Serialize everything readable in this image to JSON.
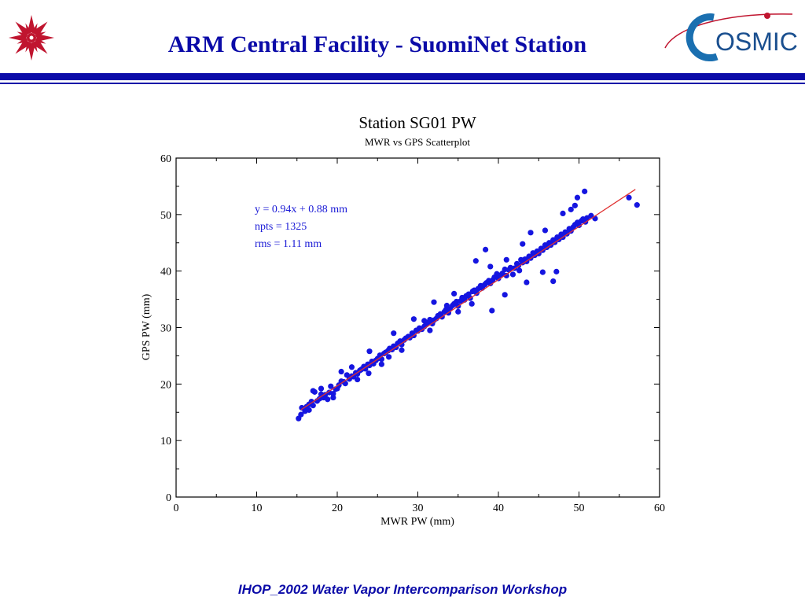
{
  "header": {
    "title": "ARM Central Facility - SuomiNet Station",
    "left_logo_icon": "star-emblem-icon",
    "right_logo_icon": "cosmic-logo-icon",
    "right_logo_text": "OSMIC",
    "accent_color": "#0b0ba8"
  },
  "footer": {
    "text": "IHOP_2002 Water Vapor Intercomparison Workshop"
  },
  "chart_data": {
    "type": "scatter",
    "title": "Station SG01 PW",
    "subtitle": "MWR vs GPS Scatterplot",
    "xlabel": "MWR PW (mm)",
    "ylabel": "GPS PW (mm)",
    "xlim": [
      0,
      60
    ],
    "ylim": [
      0,
      60
    ],
    "x_ticks": [
      "0",
      "10",
      "20",
      "30",
      "40",
      "50",
      "60"
    ],
    "y_ticks": [
      "0",
      "10",
      "20",
      "30",
      "40",
      "50",
      "60"
    ],
    "grid": false,
    "annotations": [
      "y = 0.94x + 0.88 mm",
      "npts = 1325",
      "rms = 1.11 mm"
    ],
    "point_color": "#1515e0",
    "fit_line_color": "#e03030",
    "fit": {
      "slope": 0.94,
      "intercept": 0.88,
      "x_range": [
        15.5,
        57
      ]
    },
    "series": [
      {
        "values": [
          [
            15.2,
            13.9
          ],
          [
            15.5,
            14.6
          ],
          [
            15.6,
            15.8
          ],
          [
            16.0,
            15.2
          ],
          [
            16.2,
            16.0
          ],
          [
            16.5,
            15.4
          ],
          [
            16.8,
            16.9
          ],
          [
            17.0,
            16.2
          ],
          [
            17.2,
            18.6
          ],
          [
            17.5,
            17.0
          ],
          [
            17.8,
            17.4
          ],
          [
            18.0,
            18.2
          ],
          [
            18.3,
            17.6
          ],
          [
            18.5,
            18.1
          ],
          [
            18.8,
            17.3
          ],
          [
            19.0,
            18.5
          ],
          [
            19.2,
            19.6
          ],
          [
            19.5,
            18.3
          ],
          [
            19.8,
            19.1
          ],
          [
            20.0,
            19.2
          ],
          [
            20.2,
            19.8
          ],
          [
            20.5,
            20.5
          ],
          [
            20.8,
            20.4
          ],
          [
            21.0,
            20.1
          ],
          [
            21.2,
            21.6
          ],
          [
            21.5,
            20.9
          ],
          [
            21.8,
            21.4
          ],
          [
            22.0,
            21.3
          ],
          [
            22.3,
            22.0
          ],
          [
            22.5,
            21.8
          ],
          [
            22.8,
            22.4
          ],
          [
            23.0,
            22.6
          ],
          [
            23.3,
            23.1
          ],
          [
            23.5,
            22.7
          ],
          [
            23.8,
            23.5
          ],
          [
            24.0,
            23.3
          ],
          [
            24.3,
            24.0
          ],
          [
            24.5,
            23.6
          ],
          [
            24.8,
            24.2
          ],
          [
            25.0,
            24.5
          ],
          [
            25.3,
            25.1
          ],
          [
            25.5,
            24.4
          ],
          [
            25.8,
            25.4
          ],
          [
            26.0,
            25.6
          ],
          [
            26.3,
            25.9
          ],
          [
            26.5,
            26.3
          ],
          [
            26.8,
            26.1
          ],
          [
            27.0,
            26.7
          ],
          [
            27.3,
            26.5
          ],
          [
            27.5,
            27.2
          ],
          [
            27.8,
            27.6
          ],
          [
            28.0,
            27.0
          ],
          [
            28.3,
            27.8
          ],
          [
            28.5,
            28.1
          ],
          [
            28.8,
            28.4
          ],
          [
            29.0,
            28.2
          ],
          [
            29.3,
            29.0
          ],
          [
            29.5,
            28.6
          ],
          [
            29.8,
            29.5
          ],
          [
            30.0,
            29.4
          ],
          [
            30.2,
            29.9
          ],
          [
            30.5,
            29.7
          ],
          [
            30.8,
            30.2
          ],
          [
            31.0,
            30.5
          ],
          [
            31.3,
            30.9
          ],
          [
            31.5,
            31.4
          ],
          [
            31.8,
            30.7
          ],
          [
            32.0,
            31.3
          ],
          [
            32.3,
            31.6
          ],
          [
            32.5,
            32.1
          ],
          [
            32.8,
            32.4
          ],
          [
            33.0,
            31.9
          ],
          [
            33.3,
            32.8
          ],
          [
            33.5,
            33.2
          ],
          [
            33.8,
            32.6
          ],
          [
            34.0,
            33.3
          ],
          [
            34.3,
            33.9
          ],
          [
            34.5,
            34.2
          ],
          [
            34.8,
            34.6
          ],
          [
            35.0,
            33.8
          ],
          [
            35.3,
            34.7
          ],
          [
            35.5,
            35.3
          ],
          [
            35.8,
            34.9
          ],
          [
            36.0,
            35.6
          ],
          [
            36.3,
            35.9
          ],
          [
            36.5,
            35.2
          ],
          [
            36.8,
            36.4
          ],
          [
            37.0,
            36.6
          ],
          [
            37.3,
            36.1
          ],
          [
            37.5,
            36.9
          ],
          [
            37.8,
            37.4
          ],
          [
            38.0,
            37.0
          ],
          [
            38.3,
            37.6
          ],
          [
            38.5,
            37.9
          ],
          [
            38.8,
            38.3
          ],
          [
            39.0,
            37.8
          ],
          [
            39.3,
            38.4
          ],
          [
            39.5,
            38.9
          ],
          [
            39.8,
            39.5
          ],
          [
            40.0,
            38.7
          ],
          [
            40.3,
            39.3
          ],
          [
            40.5,
            39.6
          ],
          [
            40.8,
            40.3
          ],
          [
            41.0,
            39.2
          ],
          [
            41.3,
            40.2
          ],
          [
            41.5,
            40.6
          ],
          [
            41.8,
            39.4
          ],
          [
            42.0,
            40.5
          ],
          [
            42.3,
            41.3
          ],
          [
            42.5,
            41.0
          ],
          [
            42.8,
            42.0
          ],
          [
            43.0,
            41.5
          ],
          [
            43.3,
            42.1
          ],
          [
            43.5,
            41.7
          ],
          [
            43.8,
            42.6
          ],
          [
            44.0,
            42.3
          ],
          [
            44.3,
            43.2
          ],
          [
            44.5,
            42.8
          ],
          [
            44.8,
            43.5
          ],
          [
            45.0,
            43.1
          ],
          [
            45.3,
            44.0
          ],
          [
            45.5,
            43.7
          ],
          [
            45.8,
            44.6
          ],
          [
            46.0,
            44.2
          ],
          [
            46.3,
            45.0
          ],
          [
            46.5,
            44.6
          ],
          [
            46.8,
            45.5
          ],
          [
            47.0,
            45.1
          ],
          [
            47.3,
            46.0
          ],
          [
            47.5,
            45.6
          ],
          [
            47.8,
            46.5
          ],
          [
            48.0,
            46.0
          ],
          [
            48.3,
            46.9
          ],
          [
            48.5,
            46.6
          ],
          [
            48.8,
            47.5
          ],
          [
            49.0,
            47.1
          ],
          [
            49.3,
            47.8
          ],
          [
            49.5,
            48.2
          ],
          [
            49.8,
            48.6
          ],
          [
            50.0,
            48.1
          ],
          [
            50.3,
            48.9
          ],
          [
            50.5,
            49.2
          ],
          [
            50.8,
            48.7
          ],
          [
            51.0,
            49.4
          ],
          [
            51.5,
            49.8
          ],
          [
            52.0,
            49.3
          ],
          [
            49.0,
            50.9
          ],
          [
            49.5,
            51.6
          ],
          [
            49.8,
            53.0
          ],
          [
            50.7,
            54.1
          ],
          [
            56.2,
            53.0
          ],
          [
            57.2,
            51.7
          ],
          [
            38.4,
            43.8
          ],
          [
            39.2,
            33.0
          ],
          [
            40.8,
            35.8
          ],
          [
            43.5,
            38.0
          ],
          [
            45.5,
            39.8
          ],
          [
            46.8,
            38.2
          ],
          [
            47.2,
            39.9
          ],
          [
            37.2,
            41.8
          ],
          [
            39.0,
            40.8
          ],
          [
            41.0,
            42.0
          ],
          [
            32.0,
            34.5
          ],
          [
            27.0,
            29.0
          ],
          [
            18.0,
            19.2
          ],
          [
            17.0,
            18.8
          ],
          [
            16.5,
            16.4
          ],
          [
            20.5,
            22.2
          ],
          [
            21.8,
            23.0
          ],
          [
            24.0,
            25.8
          ],
          [
            29.5,
            31.5
          ],
          [
            34.5,
            36.0
          ],
          [
            44.0,
            46.8
          ],
          [
            45.8,
            47.2
          ],
          [
            48.0,
            50.2
          ],
          [
            43.0,
            44.8
          ],
          [
            19.5,
            17.6
          ],
          [
            22.5,
            20.8
          ],
          [
            25.5,
            23.5
          ],
          [
            28.0,
            26.0
          ],
          [
            31.5,
            29.5
          ],
          [
            35.0,
            32.8
          ],
          [
            30.8,
            31.2
          ],
          [
            33.6,
            33.9
          ],
          [
            26.4,
            24.8
          ],
          [
            23.9,
            21.9
          ],
          [
            36.7,
            34.2
          ],
          [
            42.6,
            40.1
          ]
        ]
      }
    ]
  }
}
